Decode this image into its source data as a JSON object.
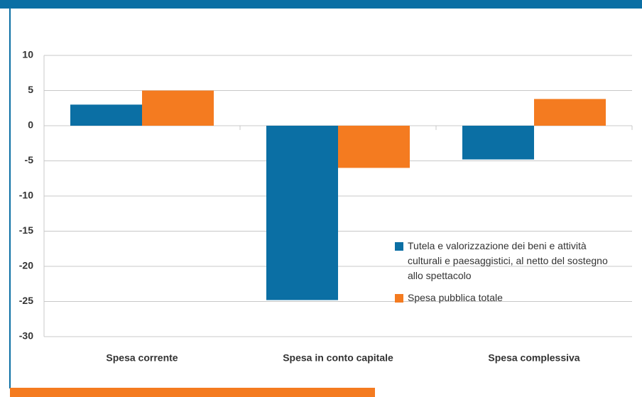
{
  "chart_data": {
    "type": "bar",
    "categories": [
      "Spesa corrente",
      "Spesa in conto capitale",
      "Spesa complessiva"
    ],
    "series": [
      {
        "name": "Tutela e valorizzazione dei beni e attività culturali e paesaggistici, al netto del sostegno allo spettacolo",
        "color": "#0b6fa4",
        "values": [
          3,
          -24.8,
          -4.8
        ]
      },
      {
        "name": "Spesa pubblica totale",
        "color": "#f47b20",
        "values": [
          5,
          -6,
          3.8
        ]
      }
    ],
    "ylim": [
      -30,
      10
    ],
    "yticks": [
      10,
      5,
      0,
      -5,
      -10,
      -15,
      -20,
      -25,
      -30
    ],
    "grid": true,
    "legend": "lower right"
  }
}
